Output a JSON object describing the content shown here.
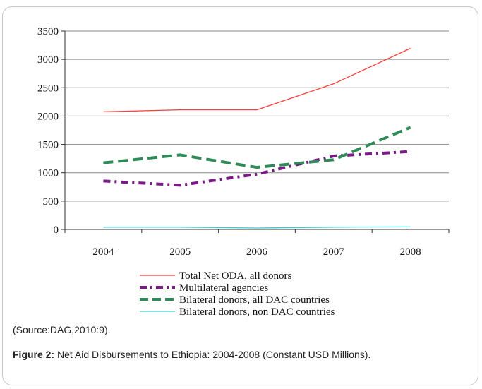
{
  "chart_data": {
    "type": "line",
    "x": [
      "2004",
      "2005",
      "2006",
      "2007",
      "2008"
    ],
    "ylim": [
      0,
      3500
    ],
    "yticks": [
      0,
      500,
      1000,
      1500,
      2000,
      2500,
      3000,
      3500
    ],
    "grid": true,
    "legend_position": "bottom",
    "series": [
      {
        "name": "Total Net ODA, all donors",
        "values": [
          2075,
          2110,
          2110,
          2570,
          3195
        ],
        "color": "#ff3b3b",
        "style": "solid"
      },
      {
        "name": "Multilateral agencies",
        "values": [
          855,
          780,
          975,
          1295,
          1375
        ],
        "color": "#7a1a86",
        "style": "dashdot"
      },
      {
        "name": "Bilateral donors, all DAC countries",
        "values": [
          1175,
          1315,
          1095,
          1230,
          1800
        ],
        "color": "#2e8b57",
        "style": "dashed"
      },
      {
        "name": "Bilateral donors, non DAC countries",
        "values": [
          40,
          40,
          25,
          40,
          45
        ],
        "color": "#3ec6cf",
        "style": "solid"
      }
    ]
  },
  "source_text": "(Source:DAG,2010:9).",
  "caption": {
    "label": "Figure 2:",
    "text": " Net Aid Disbursements to Ethiopia: 2004-2008 (Constant USD Millions)."
  }
}
